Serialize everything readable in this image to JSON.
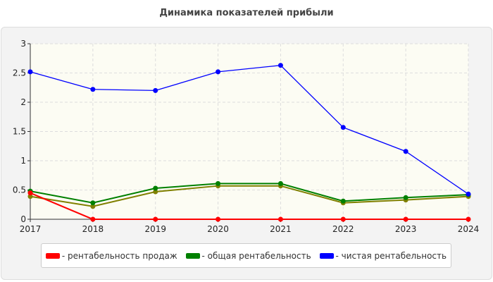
{
  "chart_data": {
    "type": "line",
    "title": "Динамика показателей прибыли",
    "xlabel": "",
    "ylabel": "",
    "x": [
      "2017",
      "2018",
      "2019",
      "2020",
      "2021",
      "2022",
      "2023",
      "2024"
    ],
    "ylim": [
      0,
      3
    ],
    "yticks": [
      "0",
      "0.5",
      "1",
      "1.5",
      "2",
      "2.5",
      "3"
    ],
    "grid": true,
    "legend_position": "bottom",
    "series": [
      {
        "name": "- рентабельность продаж",
        "color": "#ff0000",
        "values": [
          0.45,
          0,
          0,
          0,
          0,
          0,
          0,
          0
        ]
      },
      {
        "name": "- общая рентабельность",
        "color": "#008000",
        "values": [
          0.48,
          0.28,
          0.53,
          0.61,
          0.61,
          0.31,
          0.37,
          0.42
        ]
      },
      {
        "name": "- чистая рентабельность",
        "color": "#0000ff",
        "values": [
          2.52,
          2.22,
          2.2,
          2.52,
          2.63,
          1.57,
          1.16,
          0.43
        ]
      },
      {
        "name": "",
        "color": "#808000",
        "values": [
          0.39,
          0.22,
          0.47,
          0.57,
          0.57,
          0.28,
          0.33,
          0.39
        ]
      }
    ]
  }
}
